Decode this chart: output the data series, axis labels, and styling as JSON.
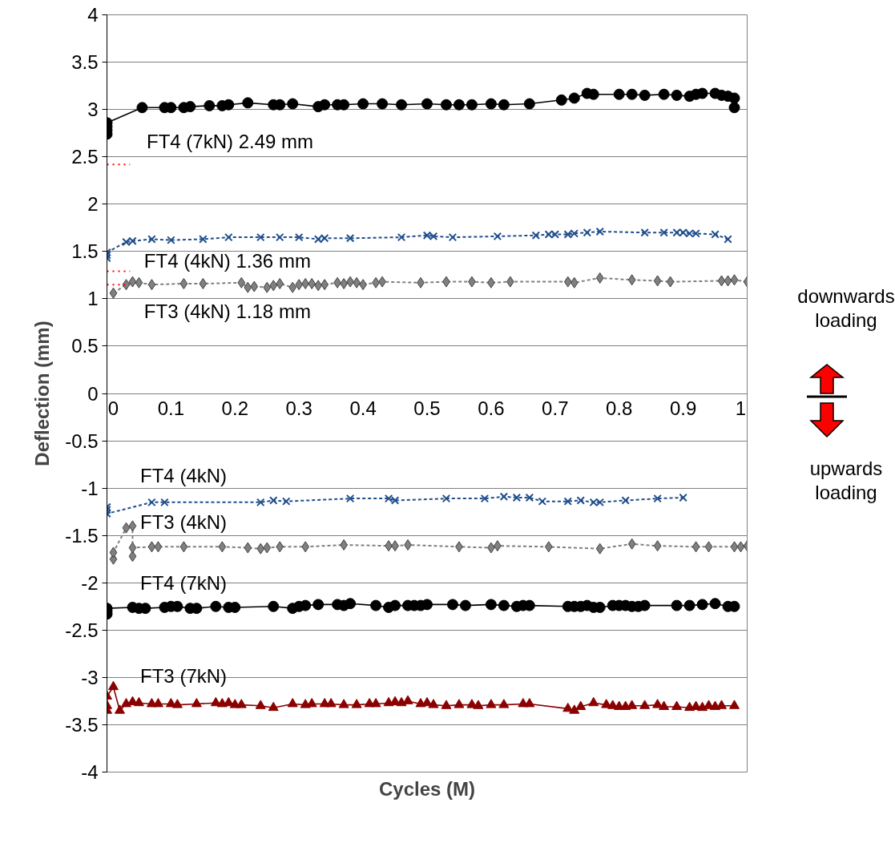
{
  "chart_data": {
    "type": "line",
    "xlabel": "Cycles (M)",
    "ylabel": "Deflection (mm)",
    "xlim": [
      0,
      1
    ],
    "ylim": [
      -4,
      4
    ],
    "xticks": [
      0,
      0.1,
      0.2,
      0.3,
      0.4,
      0.5,
      0.6,
      0.7,
      0.8,
      0.9,
      1
    ],
    "yticks": [
      -4,
      -3.5,
      -3,
      -2.5,
      -2,
      -1.5,
      -1,
      -0.5,
      0,
      0.5,
      1,
      1.5,
      2,
      2.5,
      3,
      3.5,
      4
    ],
    "grid": "y",
    "series": [
      {
        "color": "#000000",
        "marker": "circle",
        "line_style": "solid",
        "x": [
          0,
          0,
          0,
          0,
          0.055,
          0.09,
          0.1,
          0.12,
          0.13,
          0.16,
          0.18,
          0.19,
          0.22,
          0.26,
          0.27,
          0.29,
          0.33,
          0.34,
          0.36,
          0.37,
          0.4,
          0.43,
          0.46,
          0.5,
          0.53,
          0.55,
          0.57,
          0.6,
          0.62,
          0.66,
          0.71,
          0.73,
          0.75,
          0.76,
          0.8,
          0.82,
          0.84,
          0.87,
          0.89,
          0.91,
          0.92,
          0.93,
          0.95,
          0.96,
          0.97,
          0.98,
          0.98
        ],
        "values": [
          2.74,
          2.78,
          2.82,
          2.86,
          3.02,
          3.02,
          3.02,
          3.02,
          3.03,
          3.04,
          3.04,
          3.05,
          3.07,
          3.05,
          3.05,
          3.06,
          3.03,
          3.05,
          3.05,
          3.05,
          3.06,
          3.06,
          3.05,
          3.06,
          3.05,
          3.05,
          3.05,
          3.06,
          3.05,
          3.06,
          3.1,
          3.12,
          3.17,
          3.16,
          3.16,
          3.16,
          3.15,
          3.16,
          3.15,
          3.14,
          3.16,
          3.17,
          3.17,
          3.15,
          3.14,
          3.12,
          3.02
        ]
      },
      {
        "color": "#1f4e8c",
        "marker": "cross",
        "line_style": "dashed",
        "x": [
          0,
          0,
          0,
          0.03,
          0.04,
          0.07,
          0.1,
          0.15,
          0.19,
          0.24,
          0.27,
          0.3,
          0.33,
          0.34,
          0.38,
          0.46,
          0.5,
          0.51,
          0.54,
          0.61,
          0.67,
          0.69,
          0.7,
          0.72,
          0.73,
          0.75,
          0.77,
          0.84,
          0.87,
          0.89,
          0.9,
          0.91,
          0.92,
          0.95,
          0.97
        ],
        "values": [
          1.43,
          1.46,
          1.49,
          1.6,
          1.61,
          1.63,
          1.62,
          1.63,
          1.65,
          1.65,
          1.65,
          1.65,
          1.63,
          1.64,
          1.64,
          1.65,
          1.67,
          1.66,
          1.65,
          1.66,
          1.67,
          1.68,
          1.68,
          1.68,
          1.69,
          1.7,
          1.71,
          1.7,
          1.7,
          1.7,
          1.7,
          1.69,
          1.69,
          1.68,
          1.63
        ]
      },
      {
        "color": "#808080",
        "marker": "diamond",
        "line_style": "dashed",
        "x": [
          0.01,
          0.03,
          0.04,
          0.05,
          0.07,
          0.12,
          0.15,
          0.21,
          0.22,
          0.23,
          0.25,
          0.26,
          0.27,
          0.29,
          0.3,
          0.31,
          0.32,
          0.33,
          0.34,
          0.36,
          0.37,
          0.38,
          0.39,
          0.4,
          0.42,
          0.43,
          0.49,
          0.53,
          0.57,
          0.6,
          0.63,
          0.72,
          0.73,
          0.77,
          0.82,
          0.86,
          0.88,
          0.96,
          0.97,
          0.98,
          1.0
        ],
        "values": [
          1.06,
          1.15,
          1.18,
          1.17,
          1.15,
          1.16,
          1.16,
          1.17,
          1.12,
          1.13,
          1.12,
          1.14,
          1.16,
          1.12,
          1.15,
          1.16,
          1.16,
          1.14,
          1.15,
          1.17,
          1.16,
          1.18,
          1.17,
          1.15,
          1.17,
          1.18,
          1.17,
          1.18,
          1.18,
          1.17,
          1.18,
          1.18,
          1.17,
          1.22,
          1.2,
          1.19,
          1.18,
          1.19,
          1.19,
          1.2,
          1.18
        ]
      },
      {
        "color": "#1f4e8c",
        "marker": "cross",
        "line_style": "dashed",
        "x": [
          0,
          0,
          0,
          0.07,
          0.09,
          0.24,
          0.26,
          0.28,
          0.38,
          0.44,
          0.45,
          0.53,
          0.59,
          0.62,
          0.64,
          0.66,
          0.68,
          0.72,
          0.74,
          0.76,
          0.77,
          0.81,
          0.86,
          0.9
        ],
        "values": [
          -1.2,
          -1.23,
          -1.27,
          -1.15,
          -1.15,
          -1.15,
          -1.13,
          -1.14,
          -1.11,
          -1.11,
          -1.13,
          -1.11,
          -1.11,
          -1.09,
          -1.1,
          -1.1,
          -1.14,
          -1.14,
          -1.13,
          -1.15,
          -1.15,
          -1.13,
          -1.11,
          -1.1
        ]
      },
      {
        "color": "#808080",
        "marker": "diamond",
        "line_style": "dashed",
        "x": [
          0.01,
          0.01,
          0.03,
          0.04,
          0.04,
          0.04,
          0.07,
          0.08,
          0.12,
          0.18,
          0.22,
          0.24,
          0.25,
          0.27,
          0.31,
          0.37,
          0.44,
          0.45,
          0.47,
          0.55,
          0.6,
          0.61,
          0.69,
          0.77,
          0.82,
          0.86,
          0.92,
          0.94,
          0.98,
          0.99,
          1.0
        ],
        "values": [
          -1.75,
          -1.68,
          -1.42,
          -1.4,
          -1.72,
          -1.63,
          -1.62,
          -1.62,
          -1.62,
          -1.62,
          -1.63,
          -1.64,
          -1.63,
          -1.62,
          -1.62,
          -1.6,
          -1.61,
          -1.61,
          -1.6,
          -1.62,
          -1.63,
          -1.61,
          -1.62,
          -1.64,
          -1.59,
          -1.61,
          -1.62,
          -1.62,
          -1.62,
          -1.62,
          -1.61
        ]
      },
      {
        "color": "#000000",
        "marker": "circle",
        "line_style": "solid",
        "x": [
          0,
          0,
          0,
          0.04,
          0.05,
          0.06,
          0.09,
          0.1,
          0.11,
          0.13,
          0.14,
          0.17,
          0.19,
          0.2,
          0.26,
          0.29,
          0.3,
          0.31,
          0.33,
          0.36,
          0.37,
          0.38,
          0.42,
          0.44,
          0.45,
          0.47,
          0.48,
          0.49,
          0.5,
          0.54,
          0.56,
          0.6,
          0.62,
          0.64,
          0.65,
          0.66,
          0.72,
          0.73,
          0.74,
          0.75,
          0.76,
          0.77,
          0.79,
          0.8,
          0.81,
          0.82,
          0.83,
          0.84,
          0.89,
          0.91,
          0.93,
          0.95,
          0.97,
          0.98
        ],
        "values": [
          -2.33,
          -2.3,
          -2.27,
          -2.26,
          -2.27,
          -2.27,
          -2.26,
          -2.25,
          -2.25,
          -2.27,
          -2.27,
          -2.25,
          -2.26,
          -2.26,
          -2.25,
          -2.27,
          -2.25,
          -2.24,
          -2.23,
          -2.23,
          -2.24,
          -2.22,
          -2.24,
          -2.26,
          -2.24,
          -2.24,
          -2.24,
          -2.24,
          -2.23,
          -2.23,
          -2.24,
          -2.23,
          -2.24,
          -2.25,
          -2.24,
          -2.24,
          -2.25,
          -2.25,
          -2.25,
          -2.24,
          -2.26,
          -2.26,
          -2.24,
          -2.24,
          -2.24,
          -2.25,
          -2.25,
          -2.24,
          -2.24,
          -2.24,
          -2.23,
          -2.22,
          -2.25,
          -2.25
        ]
      },
      {
        "color": "#8b0000",
        "marker": "triangle",
        "line_style": "solid",
        "x": [
          0,
          0,
          0,
          0.01,
          0.02,
          0.03,
          0.04,
          0.05,
          0.07,
          0.08,
          0.1,
          0.11,
          0.14,
          0.17,
          0.18,
          0.19,
          0.2,
          0.21,
          0.24,
          0.26,
          0.29,
          0.31,
          0.32,
          0.34,
          0.35,
          0.37,
          0.39,
          0.41,
          0.42,
          0.44,
          0.45,
          0.46,
          0.47,
          0.49,
          0.5,
          0.51,
          0.53,
          0.55,
          0.57,
          0.58,
          0.6,
          0.62,
          0.65,
          0.66,
          0.72,
          0.73,
          0.74,
          0.76,
          0.78,
          0.79,
          0.8,
          0.81,
          0.82,
          0.84,
          0.86,
          0.87,
          0.89,
          0.91,
          0.92,
          0.93,
          0.94,
          0.95,
          0.96,
          0.98
        ],
        "values": [
          -3.35,
          -3.3,
          -3.2,
          -3.1,
          -3.35,
          -3.28,
          -3.26,
          -3.27,
          -3.28,
          -3.28,
          -3.28,
          -3.29,
          -3.28,
          -3.27,
          -3.28,
          -3.27,
          -3.29,
          -3.29,
          -3.3,
          -3.32,
          -3.28,
          -3.29,
          -3.28,
          -3.28,
          -3.28,
          -3.29,
          -3.29,
          -3.28,
          -3.28,
          -3.27,
          -3.26,
          -3.27,
          -3.25,
          -3.28,
          -3.27,
          -3.29,
          -3.3,
          -3.29,
          -3.29,
          -3.3,
          -3.29,
          -3.29,
          -3.28,
          -3.28,
          -3.33,
          -3.35,
          -3.31,
          -3.27,
          -3.29,
          -3.3,
          -3.31,
          -3.31,
          -3.3,
          -3.3,
          -3.29,
          -3.31,
          -3.31,
          -3.32,
          -3.31,
          -3.32,
          -3.3,
          -3.31,
          -3.3,
          -3.3
        ]
      },
      {
        "color": "#ff0000",
        "marker": "none",
        "line_style": "dotted",
        "x": [
          0,
          0.036
        ],
        "values": [
          2.42,
          2.42
        ]
      },
      {
        "color": "#ff0000",
        "marker": "none",
        "line_style": "dotted",
        "x": [
          0,
          0.036
        ],
        "values": [
          1.29,
          1.29
        ]
      },
      {
        "color": "#ff0000",
        "marker": "none",
        "line_style": "dotted",
        "x": [
          0,
          0.036
        ],
        "values": [
          1.15,
          1.15
        ]
      }
    ],
    "annotations": [
      "FT4 (7kN) 2.49 mm",
      "FT4  (4kN) 1.36 mm",
      "FT3  (4kN) 1.18 mm",
      "FT4 (4kN)",
      "FT3 (4kN)",
      "FT4 (7kN)",
      "FT3 (7kN)",
      "downwards loading",
      "upwards loading"
    ]
  }
}
